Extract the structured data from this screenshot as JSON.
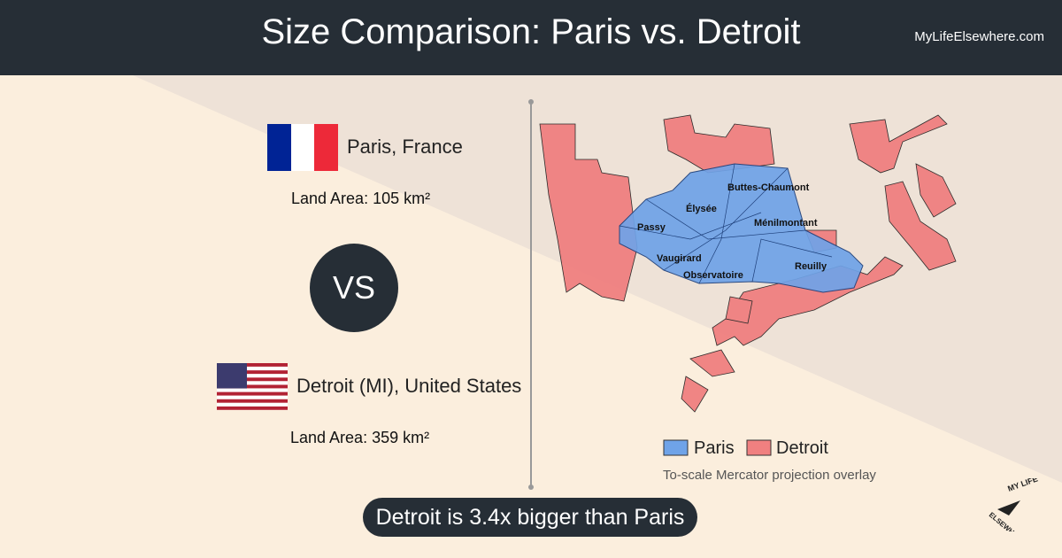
{
  "header": {
    "title": "Size Comparison: Paris vs. Detroit",
    "site": "MyLifeElsewhere.com"
  },
  "city_a": {
    "name": "Paris, France",
    "land_area_label": "Land Area:",
    "land_area": "105 km²"
  },
  "vs": "VS",
  "city_b": {
    "name": "Detroit (MI), United States",
    "land_area_label": "Land Area:",
    "land_area": "359 km²"
  },
  "map": {
    "labels": [
      "Buttes-Chaumont",
      "Élysée",
      "Ménilmontant",
      "Passy",
      "Vaugirard",
      "Observatoire",
      "Reuilly"
    ],
    "legend": [
      "Paris",
      "Detroit"
    ],
    "note": "To-scale Mercator projection overlay"
  },
  "conclusion": "Detroit is 3.4x bigger than Paris",
  "logo": {
    "top": "MY LIFE",
    "bottom": "ELSEWHERE"
  }
}
